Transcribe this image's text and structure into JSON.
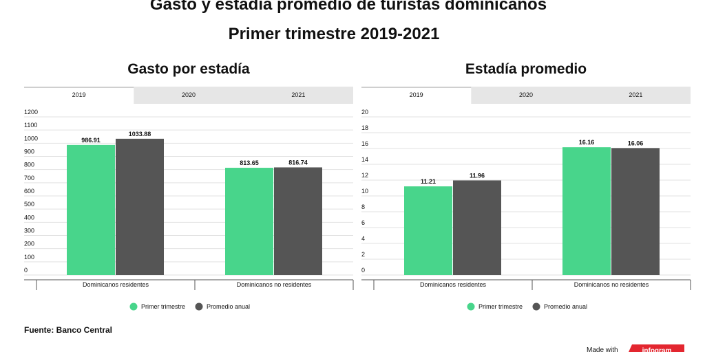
{
  "header": {
    "title": "Gasto y estadía promedio de turistas dominicanos",
    "subtitle": "Primer trimestre 2019-2021"
  },
  "chart_data": [
    {
      "type": "bar",
      "title": "Gasto por estadía",
      "tabs": [
        "2019",
        "2020",
        "2021"
      ],
      "active_tab": 0,
      "categories": [
        "Dominicanos residentes",
        "Dominicanos no residentes"
      ],
      "series": [
        {
          "name": "Primer trimestre",
          "color": "#48d58b",
          "values": [
            986.91,
            813.65
          ]
        },
        {
          "name": "Promedio anual",
          "color": "#555555",
          "values": [
            1033.88,
            816.74
          ]
        }
      ],
      "ylim": [
        0,
        1200
      ],
      "yticks": [
        0,
        100,
        200,
        300,
        400,
        500,
        600,
        700,
        800,
        900,
        1000,
        1100,
        1200
      ],
      "grid": true,
      "legend": "bottom"
    },
    {
      "type": "bar",
      "title": "Estadía promedio",
      "tabs": [
        "2019",
        "2020",
        "2021"
      ],
      "active_tab": 0,
      "categories": [
        "Dominicanos residentes",
        "Dominicanos no residentes"
      ],
      "series": [
        {
          "name": "Primer trimestre",
          "color": "#48d58b",
          "values": [
            11.21,
            16.16
          ]
        },
        {
          "name": "Promedio anual",
          "color": "#555555",
          "values": [
            11.96,
            16.06
          ]
        }
      ],
      "ylim": [
        0,
        20
      ],
      "yticks": [
        0,
        2,
        4,
        6,
        8,
        10,
        12,
        14,
        16,
        18,
        20
      ],
      "grid": true,
      "legend": "bottom"
    }
  ],
  "source": "Fuente: Banco Central",
  "branding": {
    "made_with": "Made with",
    "logo": "infogram"
  }
}
